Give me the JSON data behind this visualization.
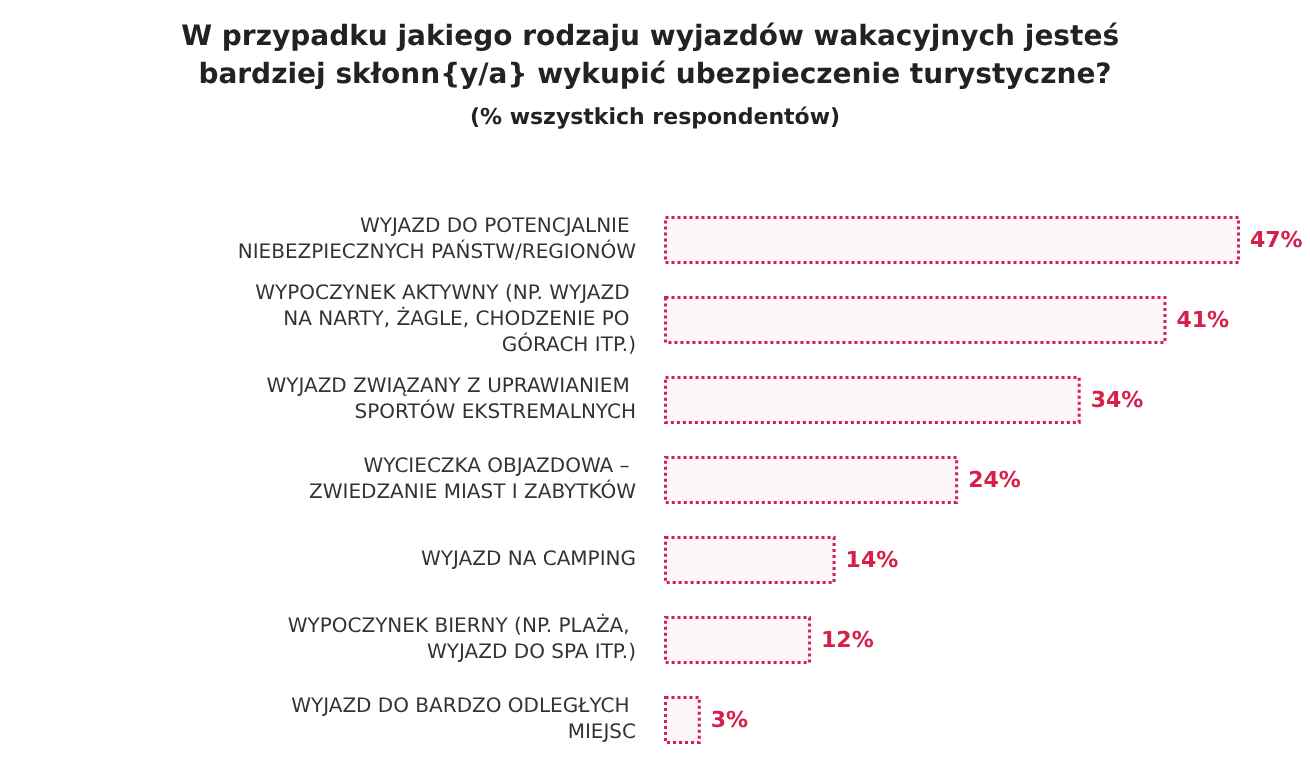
{
  "chart_data": {
    "type": "bar",
    "orientation": "horizontal",
    "title": "W przypadku jakiego rodzaju wyjazdów wakacyjnych jesteś bardziej skłonn{y/a} wykupić ubezpieczenie turystyczne?",
    "subtitle": "(% wszystkich respondentów)",
    "categories": [
      "WYJAZD DO POTENCJALNIE NIEBEZPIECZNYCH PAŃSTW/REGIONÓW",
      "WYPOCZYNEK AKTYWNY (NP. WYJAZD NA NARTY, ŻAGLE, CHODZENIE PO GÓRACH ITP.)",
      "WYJAZD ZWIĄZANY Z UPRAWIANIEM SPORTÓW EKSTREMALNYCH",
      "WYCIECZKA OBJAZDOWA – ZWIEDZANIE MIAST I ZABYTKÓW",
      "WYJAZD NA CAMPING",
      "WYPOCZYNEK BIERNY (NP. PLAŻA, WYJAZD DO SPA ITP.)",
      "WYJAZD DO BARDZO ODLEGŁYCH MIEJSC"
    ],
    "values": [
      47,
      41,
      34,
      24,
      14,
      12,
      3
    ],
    "value_labels": [
      "47%",
      "41%",
      "34%",
      "24%",
      "14%",
      "12%",
      "3%"
    ],
    "color": "#d6204c"
  }
}
